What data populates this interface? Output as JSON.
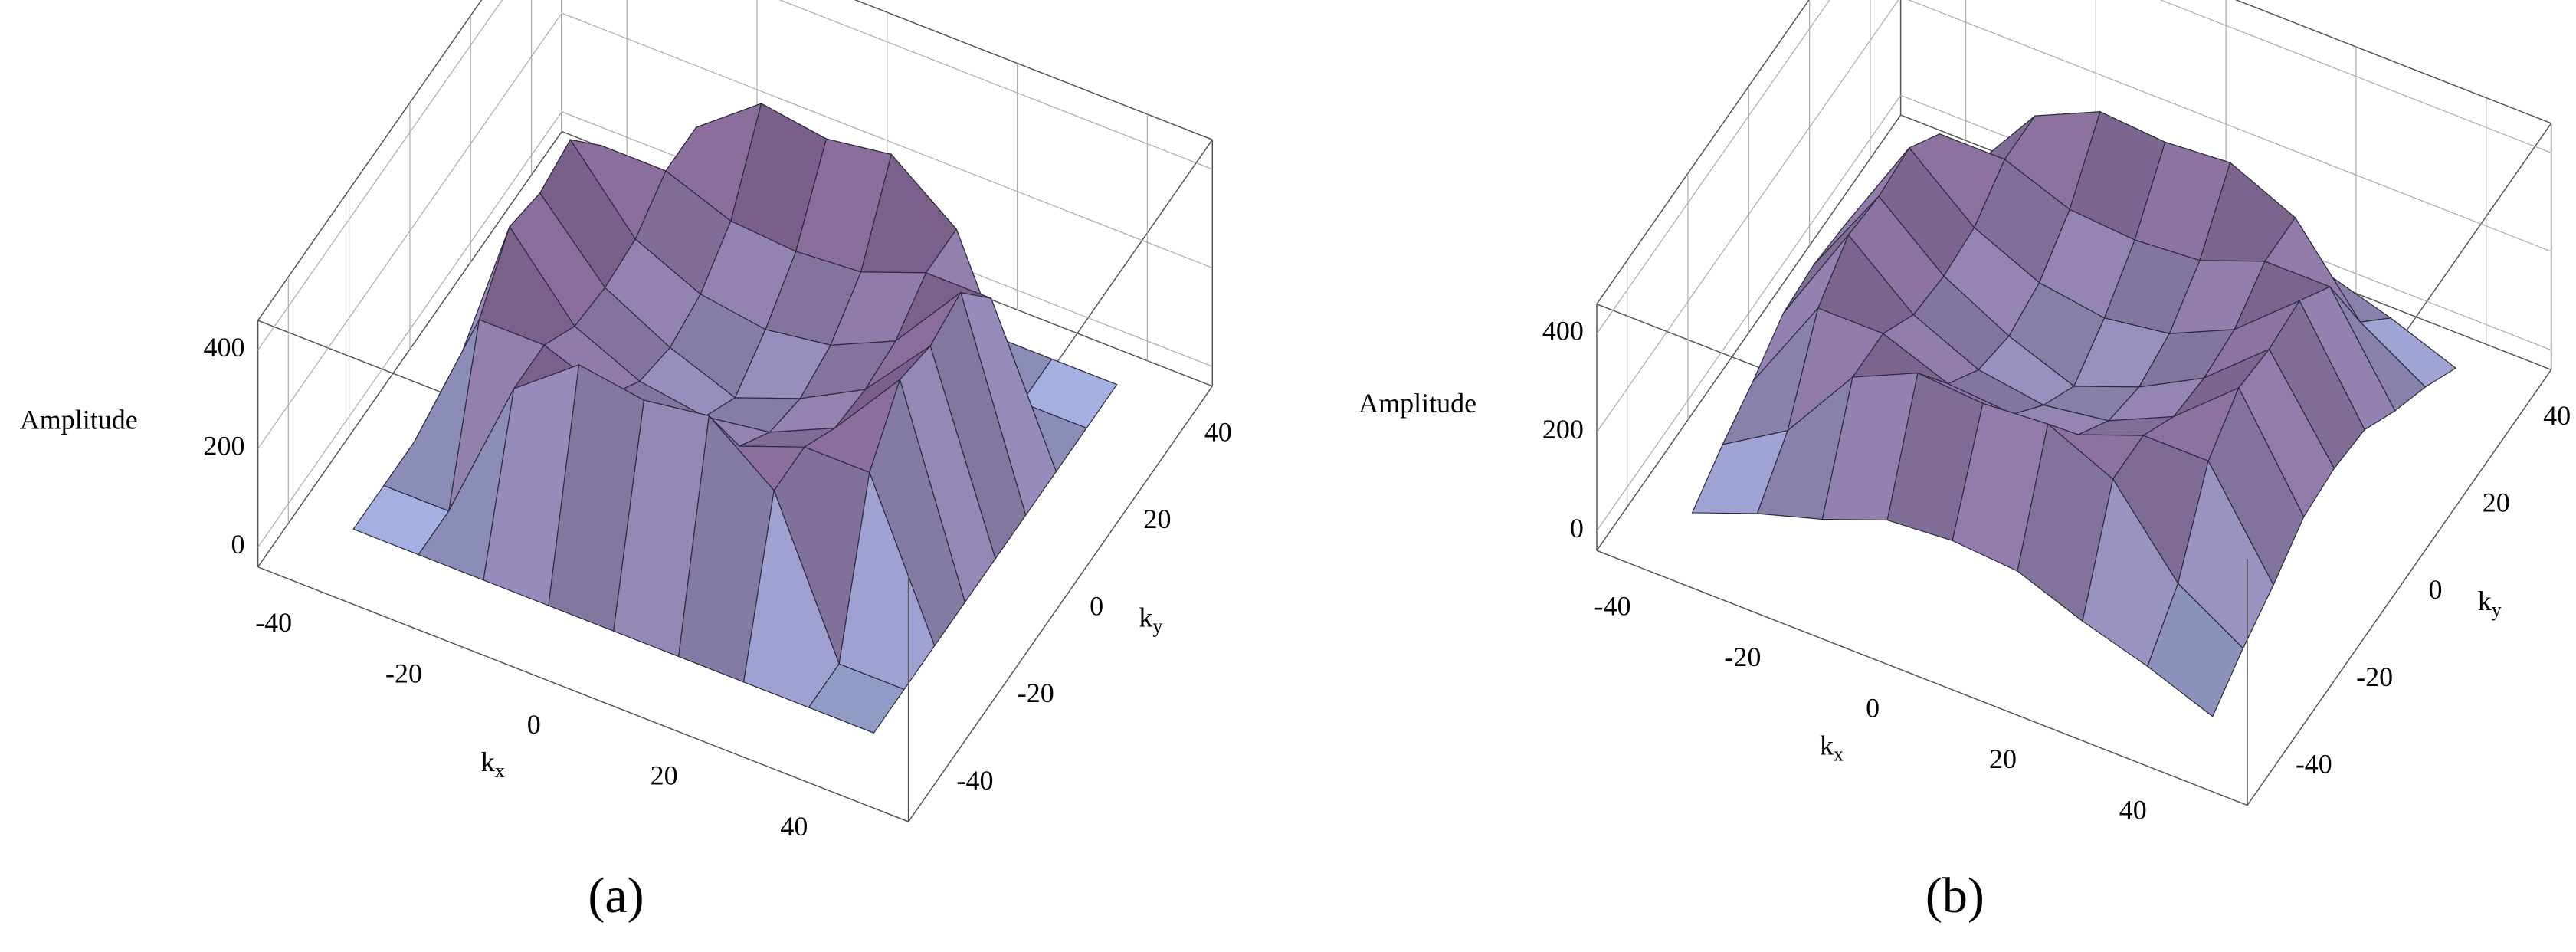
{
  "chart_data": [
    {
      "type": "surface",
      "caption": "(a)",
      "zlabel": "Amplitude",
      "xlabel": "k",
      "xlabel_sub": "x",
      "ylabel": "k",
      "ylabel_sub": "y",
      "x": [
        -40,
        -30,
        -20,
        -10,
        0,
        10,
        20,
        30,
        40
      ],
      "y": [
        -40,
        -30,
        -20,
        -10,
        0,
        10,
        20,
        30,
        40
      ],
      "z": [
        [
          0,
          0,
          0,
          0,
          0,
          0,
          0,
          0,
          0
        ],
        [
          0,
          0,
          300,
          400,
          380,
          400,
          300,
          0,
          0
        ],
        [
          0,
          300,
          300,
          250,
          240,
          250,
          300,
          300,
          0
        ],
        [
          0,
          400,
          250,
          190,
          170,
          190,
          250,
          400,
          0
        ],
        [
          0,
          380,
          240,
          170,
          120,
          170,
          240,
          380,
          0
        ],
        [
          0,
          400,
          250,
          190,
          170,
          190,
          250,
          400,
          0
        ],
        [
          0,
          300,
          300,
          250,
          240,
          250,
          300,
          300,
          0
        ],
        [
          0,
          0,
          300,
          400,
          380,
          400,
          300,
          0,
          0
        ],
        [
          0,
          0,
          0,
          0,
          0,
          0,
          0,
          0,
          0
        ]
      ],
      "xlim": [
        -50,
        50
      ],
      "ylim": [
        -50,
        50
      ],
      "zlim": [
        -40,
        460
      ],
      "xticks": [
        -40,
        -20,
        0,
        20,
        40
      ],
      "yticks": [
        -40,
        -20,
        0,
        20,
        40
      ],
      "zticks": [
        0,
        200,
        400
      ],
      "colors": [
        "#a7b9ea",
        "#8b6d9b"
      ]
    },
    {
      "type": "surface",
      "caption": "(b)",
      "zlabel": "Amplitude",
      "xlabel": "k",
      "xlabel_sub": "x",
      "ylabel": "k",
      "ylabel_sub": "y",
      "x": [
        -40,
        -30,
        -20,
        -10,
        0,
        10,
        20,
        30,
        40
      ],
      "y": [
        -40,
        -30,
        -20,
        -10,
        0,
        10,
        20,
        30,
        40
      ],
      "z": [
        [
          0,
          50,
          90,
          140,
          150,
          140,
          90,
          50,
          0
        ],
        [
          50,
          130,
          290,
          350,
          340,
          350,
          290,
          130,
          50
        ],
        [
          90,
          290,
          290,
          240,
          230,
          240,
          290,
          290,
          90
        ],
        [
          140,
          350,
          240,
          180,
          160,
          180,
          240,
          350,
          140
        ],
        [
          150,
          340,
          230,
          160,
          110,
          160,
          230,
          340,
          150
        ],
        [
          140,
          350,
          240,
          180,
          160,
          180,
          240,
          350,
          140
        ],
        [
          90,
          290,
          290,
          240,
          230,
          240,
          290,
          290,
          90
        ],
        [
          50,
          130,
          290,
          350,
          340,
          350,
          290,
          130,
          50
        ],
        [
          0,
          50,
          90,
          140,
          150,
          140,
          90,
          50,
          0
        ]
      ],
      "xlim": [
        -50,
        50
      ],
      "ylim": [
        -50,
        50
      ],
      "zlim": [
        -40,
        460
      ],
      "xticks": [
        -40,
        -20,
        0,
        20,
        40
      ],
      "yticks": [
        -40,
        -20,
        0,
        20,
        40
      ],
      "zticks": [
        0,
        200,
        400
      ],
      "colors": [
        "#a7b9ea",
        "#8b6d9b"
      ]
    }
  ]
}
